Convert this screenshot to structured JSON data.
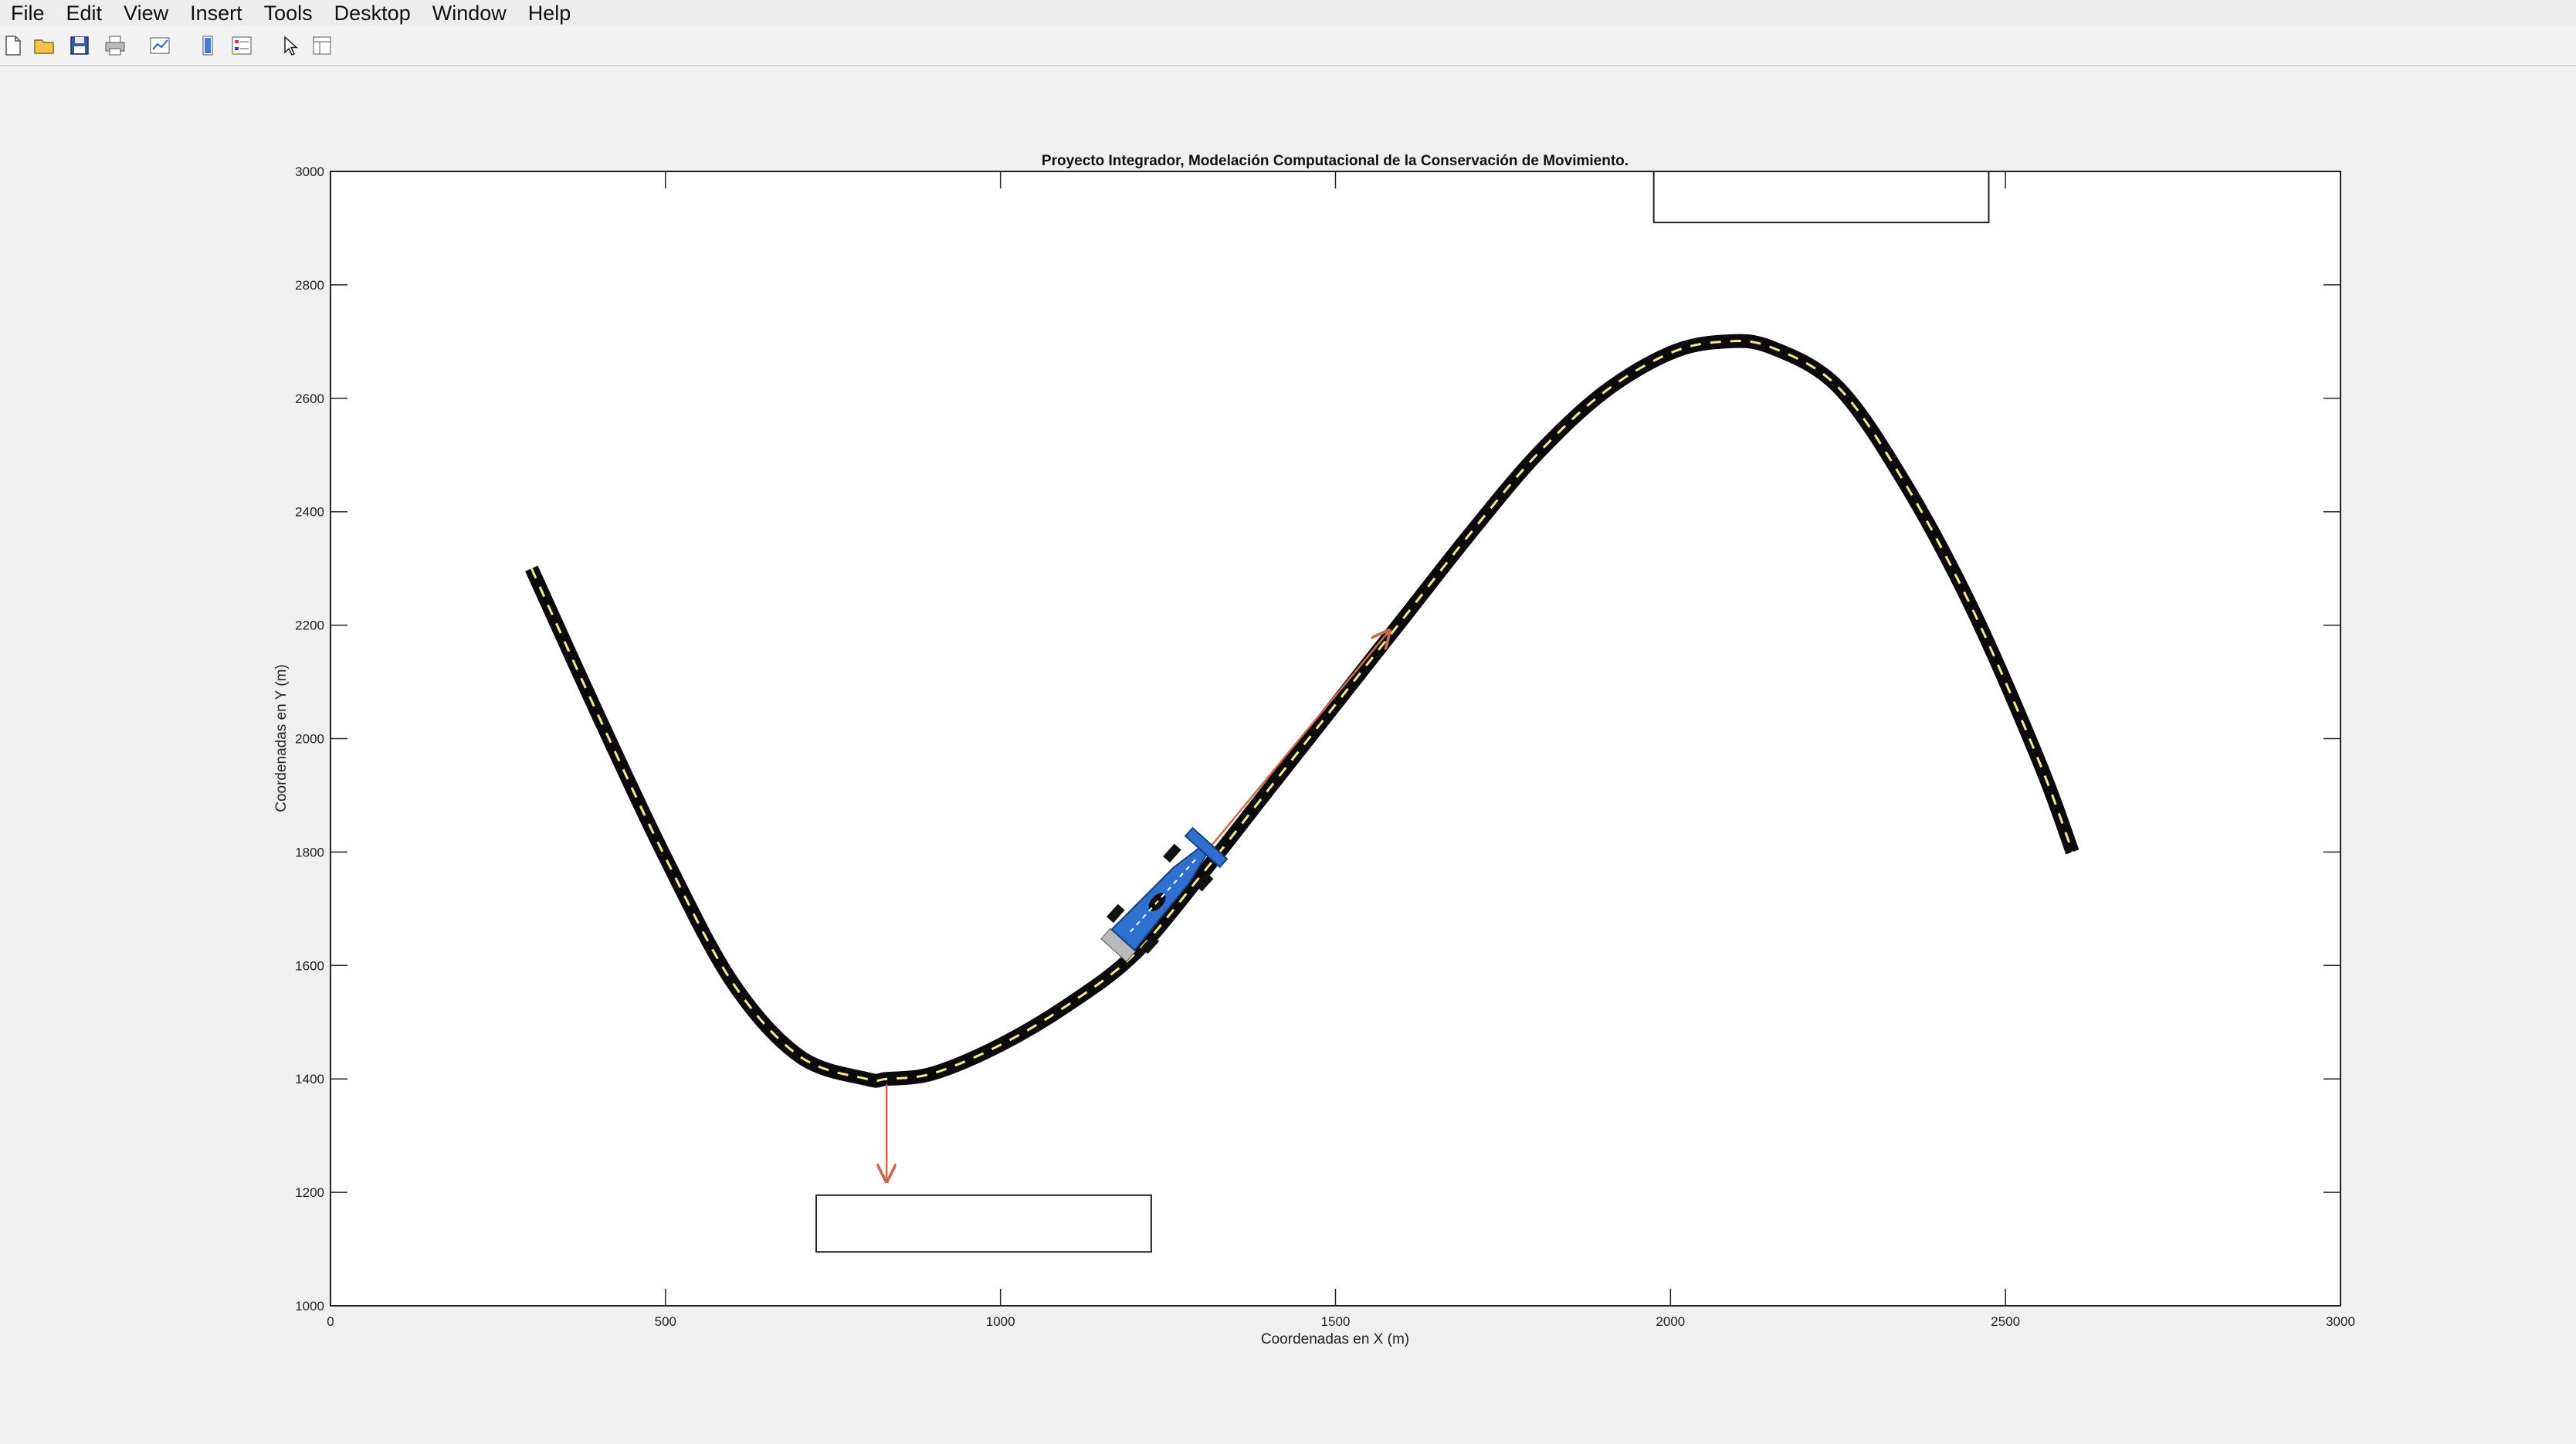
{
  "menu": {
    "items": [
      {
        "id": "file",
        "label": "File"
      },
      {
        "id": "edit",
        "label": "Edit"
      },
      {
        "id": "view",
        "label": "View"
      },
      {
        "id": "insert",
        "label": "Insert"
      },
      {
        "id": "tools",
        "label": "Tools"
      },
      {
        "id": "desktop",
        "label": "Desktop"
      },
      {
        "id": "window",
        "label": "Window"
      },
      {
        "id": "help",
        "label": "Help"
      }
    ]
  },
  "toolbar": {
    "buttons": [
      {
        "id": "new-figure",
        "icon": "new-document-icon"
      },
      {
        "id": "open-file",
        "icon": "open-folder-icon"
      },
      {
        "id": "save-figure",
        "icon": "save-disk-icon"
      },
      {
        "id": "print-figure",
        "icon": "printer-icon"
      },
      {
        "id": "link-plot",
        "icon": "link-plot-icon"
      },
      {
        "id": "insert-colorbar",
        "icon": "colorbar-icon"
      },
      {
        "id": "insert-legend",
        "icon": "legend-icon"
      },
      {
        "id": "edit-plot",
        "icon": "arrow-pointer-icon"
      },
      {
        "id": "property-inspector",
        "icon": "property-inspector-icon"
      }
    ]
  },
  "colors": {
    "road": "#0a0a0a",
    "lane_marking": "#f4e88a",
    "car_body": "#2f6fd0",
    "vector": "#c96a4a",
    "axis": "#222222"
  },
  "chart_data": {
    "type": "line",
    "title": "Proyecto Integrador, Modelación Computacional de la Conservación de Movimiento.",
    "xlabel": "Coordenadas en X (m)",
    "ylabel": "Coordenadas en Y (m)",
    "xlim": [
      0,
      3000
    ],
    "ylim": [
      1000,
      3000
    ],
    "xticks": [
      0,
      500,
      1000,
      1500,
      2000,
      2500,
      3000
    ],
    "yticks": [
      1000,
      1200,
      1400,
      1600,
      1800,
      2000,
      2200,
      2400,
      2600,
      2800,
      3000
    ],
    "grid": false,
    "series": [
      {
        "id": "track",
        "x": [
          300,
          400,
          500,
          600,
          700,
          800,
          830,
          900,
          1000,
          1100,
          1200,
          1300,
          1400,
          1500,
          1600,
          1700,
          1800,
          1900,
          2000,
          2080,
          2150,
          2250,
          2350,
          2450,
          2550,
          2600
        ],
        "y": [
          2300,
          2040,
          1790,
          1570,
          1440,
          1400,
          1400,
          1410,
          1460,
          1530,
          1620,
          1760,
          1910,
          2060,
          2210,
          2360,
          2500,
          2610,
          2680,
          2700,
          2690,
          2620,
          2450,
          2230,
          1960,
          1800
        ]
      }
    ],
    "annotations": [
      {
        "id": "car",
        "type": "race-car",
        "x": 1240,
        "y": 1720,
        "heading_deg": 48
      },
      {
        "id": "velocity-vector",
        "type": "arrow",
        "from": [
          1300,
          1790
        ],
        "to": [
          1580,
          2190
        ]
      },
      {
        "id": "centripetal-vector",
        "type": "arrow",
        "from": [
          830,
          1390
        ],
        "to": [
          830,
          1220
        ]
      },
      {
        "id": "info-box-bottom",
        "type": "box",
        "x0": 725,
        "x1": 1225,
        "y0": 1095,
        "y1": 1195
      },
      {
        "id": "info-box-top",
        "type": "box",
        "x0": 1975,
        "x1": 2475,
        "y0": 2910,
        "y1": 3000
      }
    ]
  }
}
